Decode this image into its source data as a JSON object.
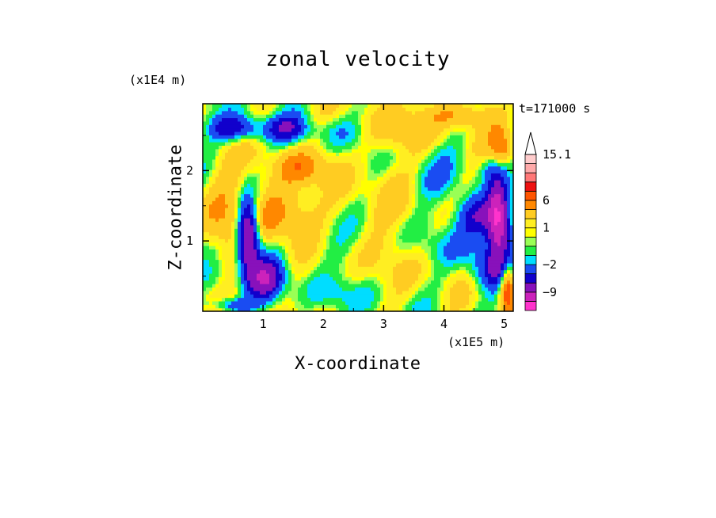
{
  "chart_data": {
    "type": "heatmap",
    "title": "zonal velocity",
    "xlabel": "X-coordinate",
    "ylabel": "Z-coordinate",
    "x_unit": "(x1E5 m)",
    "y_unit": "(x1E4 m)",
    "time_label": "t=171000 s",
    "xlim": [
      0,
      5.15
    ],
    "ylim": [
      0,
      2.95
    ],
    "x_ticks": [
      1,
      2,
      3,
      4,
      5
    ],
    "y_ticks": [
      1,
      2
    ],
    "colorbar_labels": [
      {
        "value": 15.1,
        "text": "15.1"
      },
      {
        "value": 6,
        "text": "6"
      },
      {
        "value": 1,
        "text": "1"
      },
      {
        "value": -2,
        "text": "−2"
      },
      {
        "value": -9,
        "text": "−9"
      }
    ],
    "colorbar_levels": [
      {
        "color": "#ff33cc",
        "range": [
          -15,
          -12
        ]
      },
      {
        "color": "#cc22bb",
        "range": [
          -12,
          -9
        ]
      },
      {
        "color": "#8811bb",
        "range": [
          -9,
          -6
        ]
      },
      {
        "color": "#1100cc",
        "range": [
          -6,
          -4
        ]
      },
      {
        "color": "#1a4cf2",
        "range": [
          -4,
          -2
        ]
      },
      {
        "color": "#00ddff",
        "range": [
          -2,
          -1
        ]
      },
      {
        "color": "#22ee44",
        "range": [
          -1,
          0
        ]
      },
      {
        "color": "#99ff55",
        "range": [
          0,
          0.5
        ]
      },
      {
        "color": "#ffff00",
        "range": [
          0.5,
          1
        ]
      },
      {
        "color": "#ffee22",
        "range": [
          1,
          2
        ]
      },
      {
        "color": "#ffcc22",
        "range": [
          2,
          4
        ]
      },
      {
        "color": "#ff8800",
        "range": [
          4,
          6
        ]
      },
      {
        "color": "#ff5500",
        "range": [
          6,
          8
        ]
      },
      {
        "color": "#ee1111",
        "range": [
          8,
          10
        ]
      },
      {
        "color": "#ff7777",
        "range": [
          10,
          12
        ]
      },
      {
        "color": "#ffaaaa",
        "range": [
          12,
          14
        ]
      },
      {
        "color": "#ffcccc",
        "range": [
          14,
          15.1
        ]
      },
      {
        "color": "#ffffff",
        "range": [
          15.1,
          20
        ]
      }
    ]
  }
}
